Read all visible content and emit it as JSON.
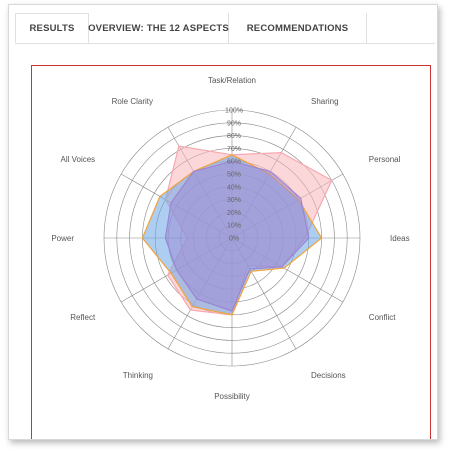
{
  "tabs": [
    {
      "label": "RESULTS",
      "active": true
    },
    {
      "label": "OVERVIEW: THE 12 ASPECTS",
      "active": false
    },
    {
      "label": "RECOMMENDATIONS",
      "active": false
    }
  ],
  "chart_data": {
    "type": "radar",
    "axes": [
      "Task/Relation",
      "Sharing",
      "Personal",
      "Ideas",
      "Conflict",
      "Decisions",
      "Possibility",
      "Thinking",
      "Reflect",
      "Power",
      "All Voices",
      "Role Clarity"
    ],
    "rlim": [
      0,
      100
    ],
    "ticks": [
      "0%",
      "10%",
      "20%",
      "30%",
      "40%",
      "50%",
      "60%",
      "70%",
      "80%",
      "90%",
      "100%"
    ],
    "tick_values": [
      0,
      10,
      20,
      30,
      40,
      50,
      60,
      70,
      80,
      90,
      100
    ],
    "grid": true,
    "series": [
      {
        "values": [
          65,
          77,
          90,
          57,
          45,
          25,
          60,
          65,
          58,
          35,
          60,
          83
        ],
        "fill": "#f7b6bc",
        "stroke": "#f7a8b0",
        "fill_opacity": 0.55
      },
      {
        "values": [
          65,
          58,
          60,
          70,
          47,
          30,
          60,
          62,
          55,
          70,
          65,
          60
        ],
        "fill": "#6aa6e6",
        "stroke": "#f2a33a",
        "fill_opacity": 0.55
      },
      {
        "values": [
          60,
          60,
          62,
          60,
          45,
          28,
          57,
          55,
          50,
          52,
          55,
          60
        ],
        "fill": "#9b85d4",
        "stroke": "#9b85d4",
        "fill_opacity": 0.5
      }
    ]
  }
}
